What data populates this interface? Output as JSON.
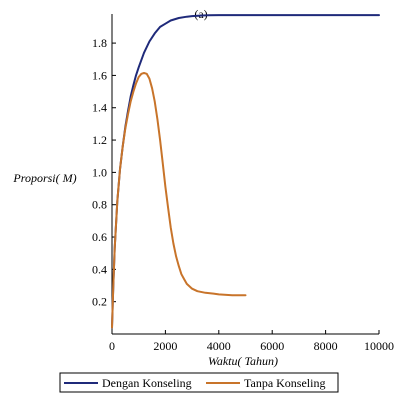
{
  "chart_data": {
    "type": "line",
    "title": "(a)",
    "xlabel": "Waktu( Tahun)",
    "ylabel": "Proporsi( M)",
    "xlim": [
      0,
      10000
    ],
    "ylim": [
      0,
      1.98
    ],
    "grid": false,
    "legend_position": "bottom",
    "x_ticks": [
      0,
      2000,
      4000,
      6000,
      8000,
      10000
    ],
    "x_tick_labels": [
      "0",
      "2000",
      "4000",
      "6000",
      "8000",
      "10000"
    ],
    "y_ticks": [
      0.2,
      0.4,
      0.6,
      0.8,
      1.0,
      1.2,
      1.4,
      1.6,
      1.8
    ],
    "y_tick_labels": [
      "0.2",
      "0.4",
      "0.6",
      "0.8",
      "1.0",
      "1.2",
      "1.4",
      "1.6",
      "1.8"
    ],
    "series": [
      {
        "name": "Dengan Konseling",
        "color": "#1f2a7a",
        "x": [
          0,
          50,
          100,
          200,
          300,
          400,
          500,
          600,
          700,
          800,
          900,
          1000,
          1200,
          1400,
          1600,
          1800,
          2000,
          2200,
          2500,
          2800,
          3000,
          3300,
          3600,
          4000,
          5000,
          6000,
          8000,
          10000
        ],
        "y": [
          0.04,
          0.3,
          0.53,
          0.82,
          1.02,
          1.16,
          1.28,
          1.38,
          1.47,
          1.54,
          1.6,
          1.65,
          1.74,
          1.81,
          1.86,
          1.9,
          1.92,
          1.94,
          1.955,
          1.963,
          1.967,
          1.97,
          1.972,
          1.973,
          1.973,
          1.973,
          1.973,
          1.973
        ]
      },
      {
        "name": "Tanpa Konseling",
        "color": "#c8742a",
        "x": [
          0,
          50,
          100,
          200,
          300,
          400,
          500,
          600,
          700,
          800,
          900,
          1000,
          1100,
          1200,
          1300,
          1400,
          1500,
          1600,
          1700,
          1800,
          1900,
          2000,
          2100,
          2200,
          2300,
          2400,
          2500,
          2600,
          2700,
          2800,
          3000,
          3200,
          3500,
          3800,
          4000,
          4500,
          5000
        ],
        "y": [
          0.04,
          0.3,
          0.53,
          0.82,
          1.02,
          1.16,
          1.27,
          1.36,
          1.44,
          1.5,
          1.55,
          1.59,
          1.61,
          1.615,
          1.61,
          1.58,
          1.52,
          1.44,
          1.33,
          1.2,
          1.06,
          0.91,
          0.78,
          0.66,
          0.56,
          0.48,
          0.42,
          0.37,
          0.34,
          0.31,
          0.28,
          0.265,
          0.255,
          0.25,
          0.245,
          0.24,
          0.24
        ]
      }
    ]
  }
}
